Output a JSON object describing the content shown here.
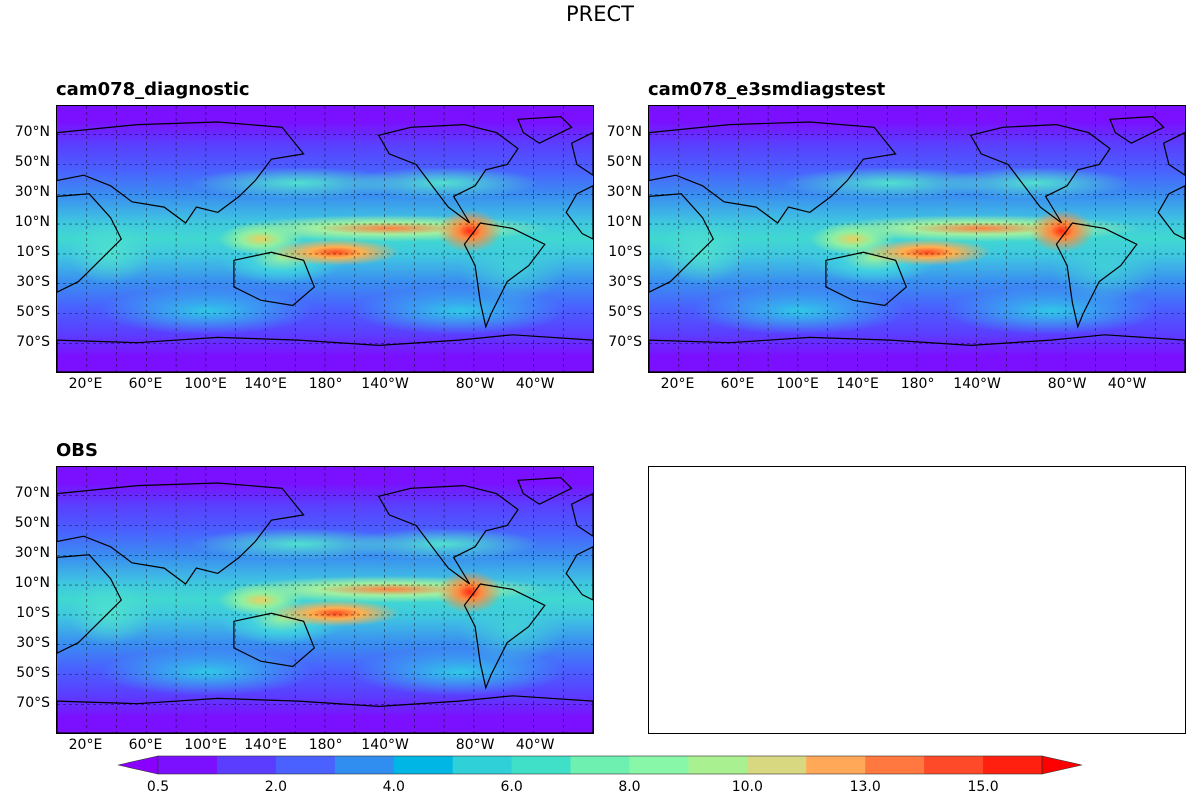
{
  "figure": {
    "title": "PRECT"
  },
  "chart_data": [
    {
      "type": "heatmap",
      "title": "cam078_diagnostic",
      "projection": "PlateCarree centered at 180°",
      "lat_ticks": [
        "70°N",
        "50°N",
        "30°N",
        "10°N",
        "10°S",
        "30°S",
        "50°S",
        "70°S"
      ],
      "lon_ticks": [
        "20°E",
        "60°E",
        "100°E",
        "140°E",
        "180°",
        "140°W",
        "80°W",
        "40°W"
      ],
      "grid": true,
      "coastlines": true
    },
    {
      "type": "heatmap",
      "title": "cam078_e3smdiagstest",
      "projection": "PlateCarree centered at 180°",
      "lat_ticks": [
        "70°N",
        "50°N",
        "30°N",
        "10°N",
        "10°S",
        "30°S",
        "50°S",
        "70°S"
      ],
      "lon_ticks": [
        "20°E",
        "60°E",
        "100°E",
        "140°E",
        "180°",
        "140°W",
        "80°W",
        "40°W"
      ],
      "grid": true,
      "coastlines": true
    },
    {
      "type": "heatmap",
      "title": "OBS",
      "projection": "PlateCarree centered at 180°",
      "lat_ticks": [
        "70°N",
        "50°N",
        "30°N",
        "10°N",
        "10°S",
        "30°S",
        "50°S",
        "70°S"
      ],
      "lon_ticks": [
        "20°E",
        "60°E",
        "100°E",
        "140°E",
        "180°",
        "140°W",
        "80°W",
        "40°W"
      ],
      "grid": true,
      "coastlines": true
    }
  ],
  "colorbar": {
    "orientation": "horizontal",
    "extend": "both",
    "levels": [
      0.5,
      1,
      2,
      3,
      4,
      5,
      6,
      7,
      8,
      9,
      10,
      11.5,
      13,
      14,
      15,
      16
    ],
    "tick_labels": [
      "0.5",
      "2.0",
      "4.0",
      "6.0",
      "8.0",
      "10.0",
      "13.0",
      "15.0"
    ],
    "colors": [
      "#7a10ff",
      "#5b3dff",
      "#4a60ff",
      "#2f8ef0",
      "#00b6e4",
      "#2fd0d8",
      "#40e0c8",
      "#6df0b0",
      "#88f8a8",
      "#a8f090",
      "#d8d880",
      "#ffa858",
      "#ff7840",
      "#ff4a2a",
      "#ff2010"
    ],
    "under_color": "#8a00ff",
    "over_color": "#ff0000"
  }
}
